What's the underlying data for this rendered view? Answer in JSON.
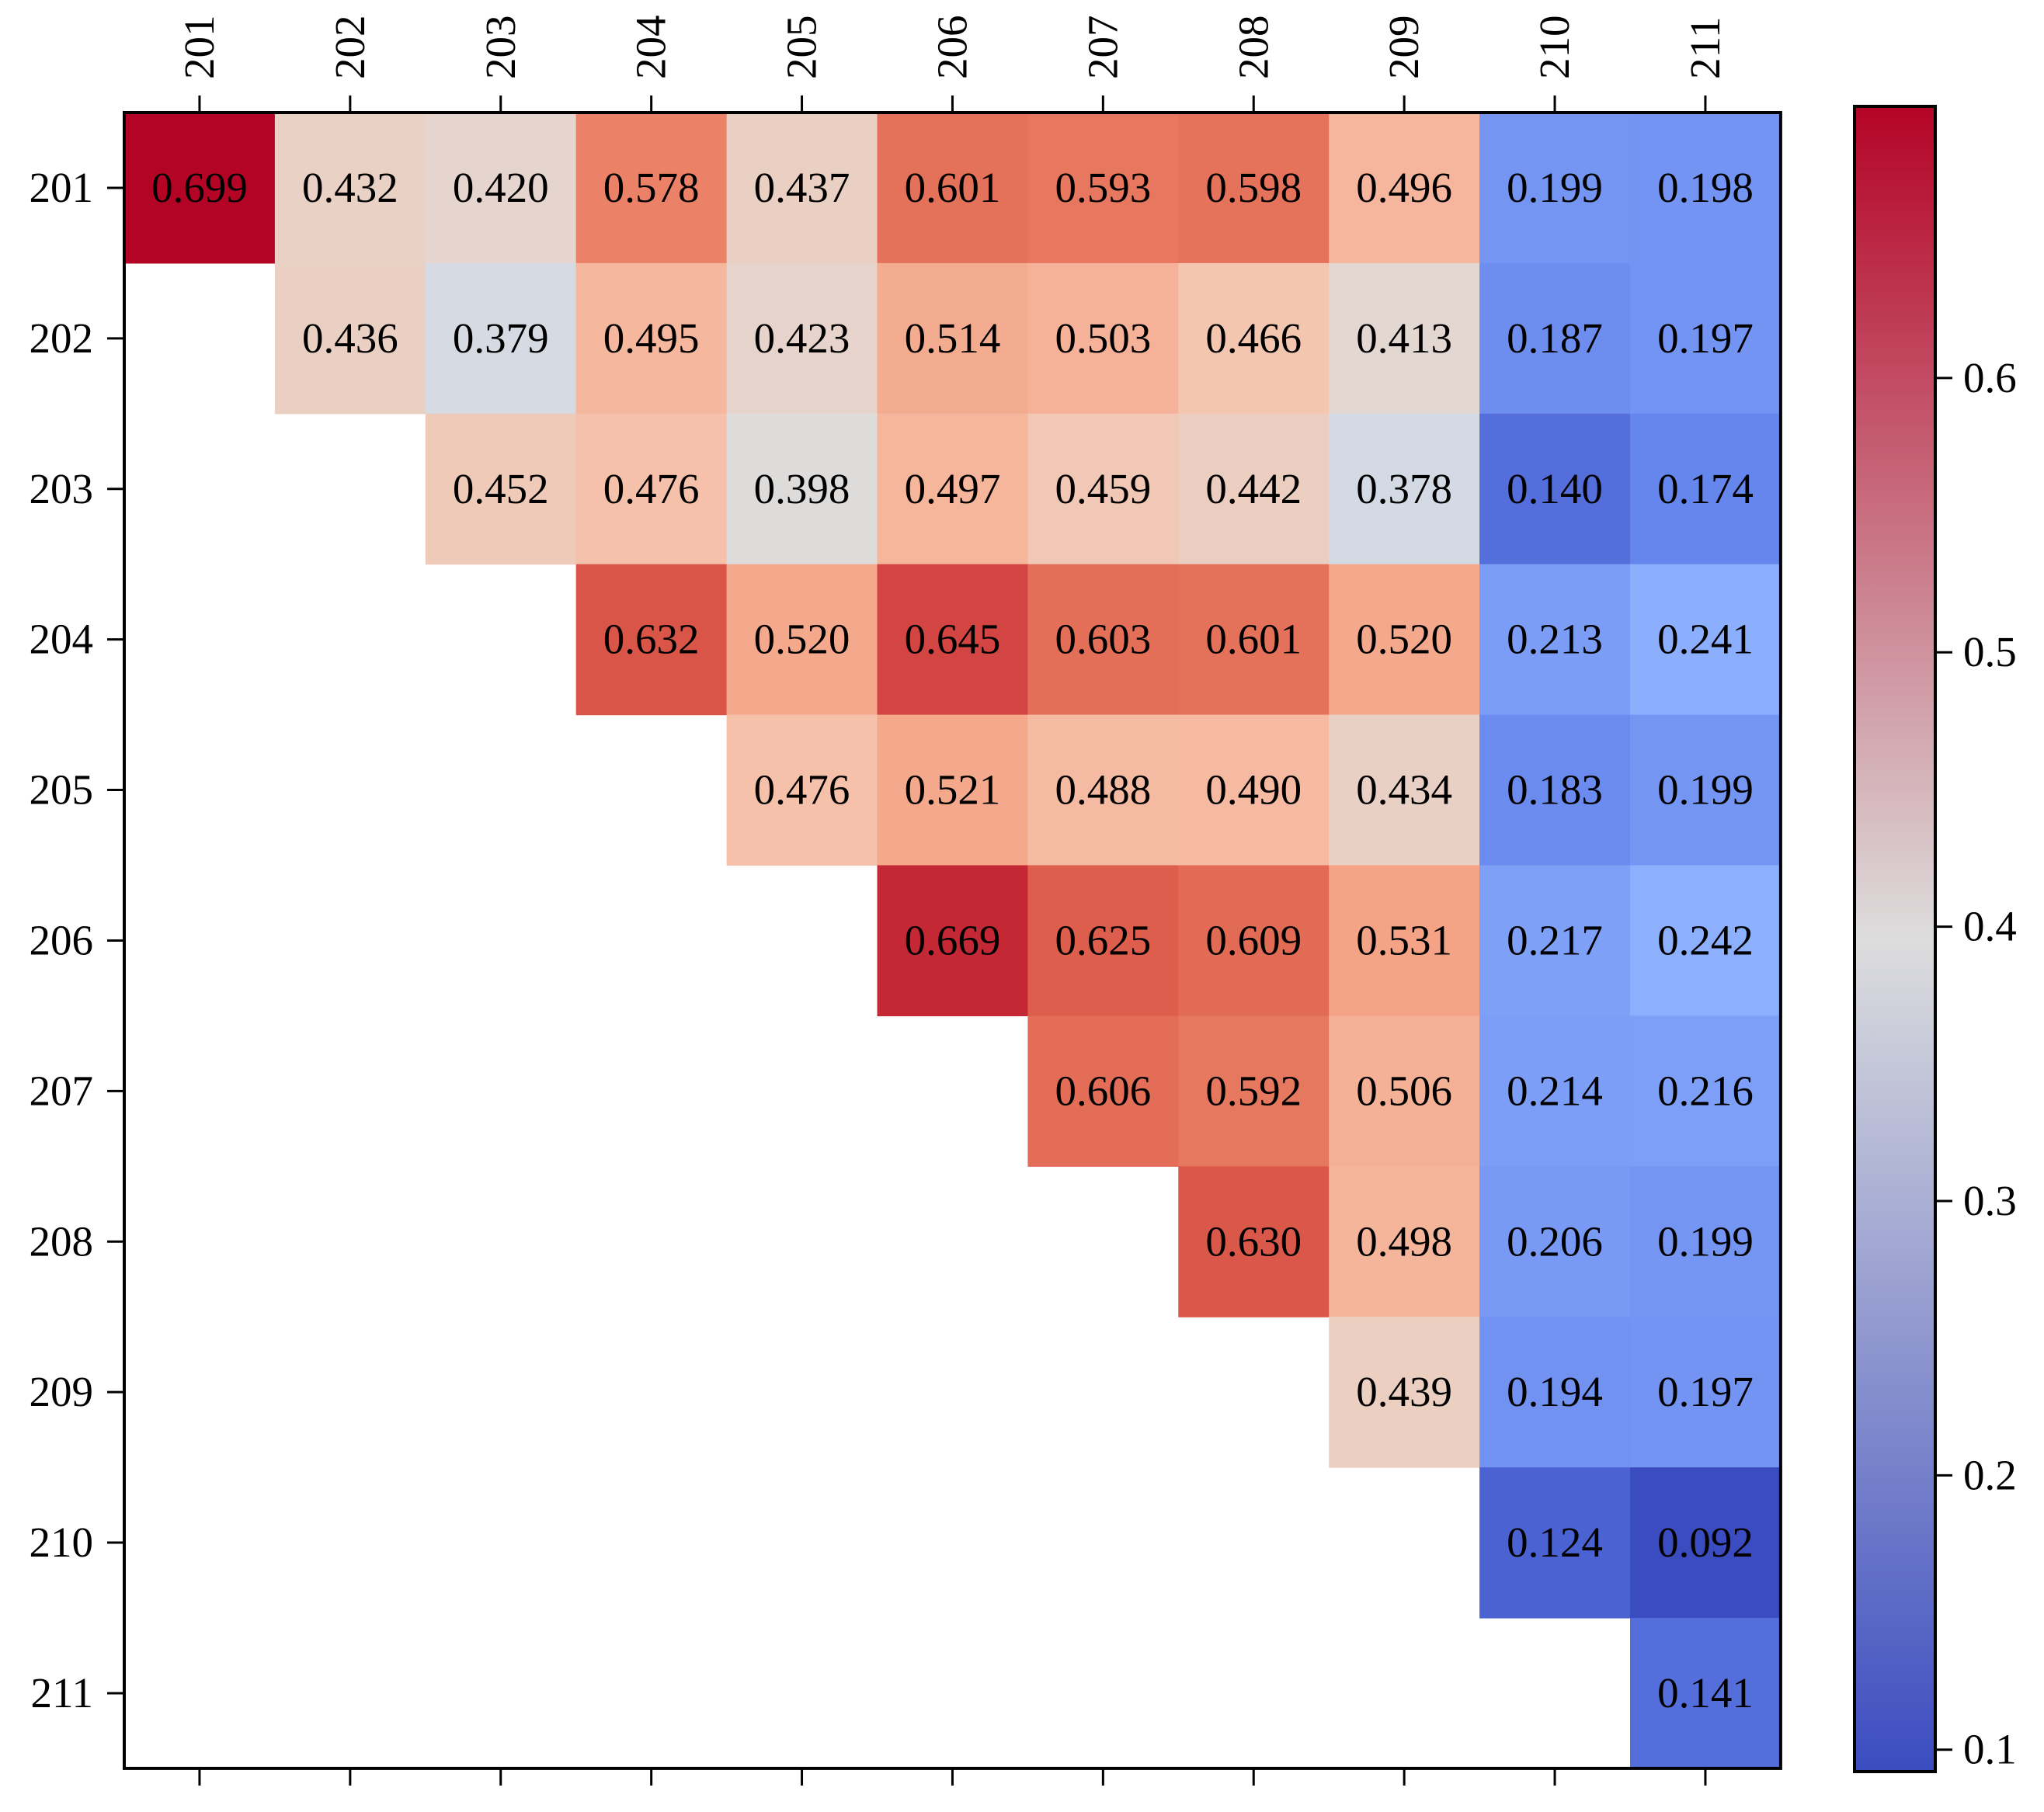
{
  "chart_data": {
    "type": "heatmap",
    "title": "",
    "xlabel": "",
    "ylabel": "",
    "triangle": "upper",
    "row_labels": [
      "201",
      "202",
      "203",
      "204",
      "205",
      "206",
      "207",
      "208",
      "209",
      "210",
      "211"
    ],
    "col_labels": [
      "201",
      "202",
      "203",
      "204",
      "205",
      "206",
      "207",
      "208",
      "209",
      "210",
      "211"
    ],
    "values": [
      [
        0.699,
        0.432,
        0.42,
        0.578,
        0.437,
        0.601,
        0.593,
        0.598,
        0.496,
        0.199,
        0.198
      ],
      [
        null,
        0.436,
        0.379,
        0.495,
        0.423,
        0.514,
        0.503,
        0.466,
        0.413,
        0.187,
        0.197
      ],
      [
        null,
        null,
        0.452,
        0.476,
        0.398,
        0.497,
        0.459,
        0.442,
        0.378,
        0.14,
        0.174
      ],
      [
        null,
        null,
        null,
        0.632,
        0.52,
        0.645,
        0.603,
        0.601,
        0.52,
        0.213,
        0.241
      ],
      [
        null,
        null,
        null,
        null,
        0.476,
        0.521,
        0.488,
        0.49,
        0.434,
        0.183,
        0.199
      ],
      [
        null,
        null,
        null,
        null,
        null,
        0.669,
        0.625,
        0.609,
        0.531,
        0.217,
        0.242
      ],
      [
        null,
        null,
        null,
        null,
        null,
        null,
        0.606,
        0.592,
        0.506,
        0.214,
        0.216
      ],
      [
        null,
        null,
        null,
        null,
        null,
        null,
        null,
        0.63,
        0.498,
        0.206,
        0.199
      ],
      [
        null,
        null,
        null,
        null,
        null,
        null,
        null,
        null,
        0.439,
        0.194,
        0.197
      ],
      [
        null,
        null,
        null,
        null,
        null,
        null,
        null,
        null,
        null,
        0.124,
        0.092
      ],
      [
        null,
        null,
        null,
        null,
        null,
        null,
        null,
        null,
        null,
        null,
        0.141
      ]
    ],
    "value_labels": [
      [
        "0.699",
        "0.432",
        "0.420",
        "0.578",
        "0.437",
        "0.601",
        "0.593",
        "0.598",
        "0.496",
        "0.199",
        "0.198"
      ],
      [
        null,
        "0.436",
        "0.379",
        "0.495",
        "0.423",
        "0.514",
        "0.503",
        "0.466",
        "0.413",
        "0.187",
        "0.197"
      ],
      [
        null,
        null,
        "0.452",
        "0.476",
        "0.398",
        "0.497",
        "0.459",
        "0.442",
        "0.378",
        "0.140",
        "0.174"
      ],
      [
        null,
        null,
        null,
        "0.632",
        "0.520",
        "0.645",
        "0.603",
        "0.601",
        "0.520",
        "0.213",
        "0.241"
      ],
      [
        null,
        null,
        null,
        null,
        "0.476",
        "0.521",
        "0.488",
        "0.490",
        "0.434",
        "0.183",
        "0.199"
      ],
      [
        null,
        null,
        null,
        null,
        null,
        "0.669",
        "0.625",
        "0.609",
        "0.531",
        "0.217",
        "0.242"
      ],
      [
        null,
        null,
        null,
        null,
        null,
        null,
        "0.606",
        "0.592",
        "0.506",
        "0.214",
        "0.216"
      ],
      [
        null,
        null,
        null,
        null,
        null,
        null,
        null,
        "0.630",
        "0.498",
        "0.206",
        "0.199"
      ],
      [
        null,
        null,
        null,
        null,
        null,
        null,
        null,
        null,
        "0.439",
        "0.194",
        "0.197"
      ],
      [
        null,
        null,
        null,
        null,
        null,
        null,
        null,
        null,
        null,
        "0.124",
        "0.092"
      ],
      [
        null,
        null,
        null,
        null,
        null,
        null,
        null,
        null,
        null,
        null,
        "0.141"
      ]
    ],
    "colormap": "coolwarm",
    "colormap_stops": [
      "#3b4cc0",
      "#dddddd",
      "#b40426"
    ],
    "color_range": [
      0.092,
      0.699
    ],
    "colorbar": {
      "ticks": [
        0.1,
        0.2,
        0.3,
        0.4,
        0.5,
        0.6
      ],
      "tick_labels": [
        "0.1",
        "0.2",
        "0.3",
        "0.4",
        "0.5",
        "0.6"
      ],
      "placement": "right"
    },
    "x_tick_position": "top-and-bottom",
    "x_tick_label_rotation": -90,
    "grid": false
  }
}
